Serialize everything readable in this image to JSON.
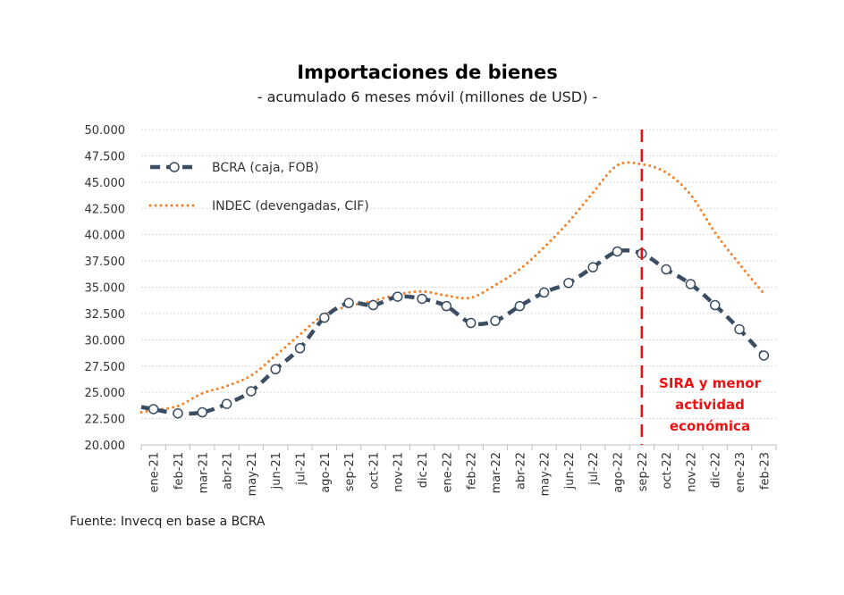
{
  "chart_data": {
    "type": "line",
    "title": "Importaciones de bienes",
    "subtitle": "- acumulado 6 meses móvil (millones de USD) -",
    "source": "Fuente: Invecq en base a BCRA",
    "categories": [
      "ene-21",
      "feb-21",
      "mar-21",
      "abr-21",
      "may-21",
      "jun-21",
      "jul-21",
      "ago-21",
      "sep-21",
      "oct-21",
      "nov-21",
      "dic-21",
      "ene-22",
      "feb-22",
      "mar-22",
      "abr-22",
      "may-22",
      "jun-22",
      "jul-22",
      "ago-22",
      "sep-22",
      "oct-22",
      "nov-22",
      "dic-22",
      "ene-23",
      "feb-23"
    ],
    "ylim": [
      20000,
      50000
    ],
    "yticks": [
      20000,
      22500,
      25000,
      27500,
      30000,
      32500,
      35000,
      37500,
      40000,
      42500,
      45000,
      47500,
      50000
    ],
    "ytick_labels": [
      "20.000",
      "22.500",
      "25.000",
      "27.500",
      "30.000",
      "32.500",
      "35.000",
      "37.500",
      "40.000",
      "42.500",
      "45.000",
      "47.500",
      "50.000"
    ],
    "grid": "horizontal dotted",
    "legend_placement": "top-left",
    "series": [
      {
        "name": "BCRA (caja, FOB)",
        "color": "#3a4d63",
        "style": "dashed with circle markers",
        "values": [
          23400,
          23000,
          23100,
          23900,
          25100,
          27200,
          29200,
          32100,
          33500,
          33300,
          34100,
          33900,
          33200,
          31600,
          31800,
          33200,
          34500,
          35400,
          36900,
          38400,
          38200,
          36700,
          35300,
          33300,
          31000,
          28500
        ]
      },
      {
        "name": "INDEC (devengadas, CIF)",
        "color": "#f58025",
        "style": "dotted",
        "values": [
          23300,
          23700,
          24900,
          25600,
          26600,
          28500,
          30500,
          32400,
          33200,
          33700,
          34300,
          34600,
          34200,
          34000,
          35200,
          36700,
          38800,
          41200,
          44000,
          46600,
          46700,
          45900,
          43800,
          40200,
          37200,
          34400
        ]
      }
    ],
    "vline": {
      "category": "sep-22",
      "color": "#ee1111",
      "style": "dashed"
    },
    "annotation": [
      "SIRA y menor",
      "actividad",
      "económica"
    ]
  }
}
